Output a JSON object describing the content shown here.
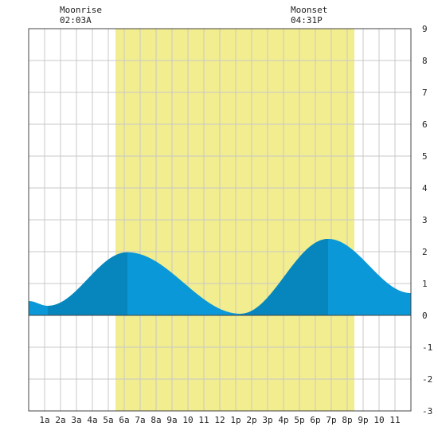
{
  "header": {
    "moonrise_label": "Moonrise",
    "moonrise_time": "02:03A",
    "moonset_label": "Moonset",
    "moonset_time": "04:31P"
  },
  "chart_data": {
    "type": "area",
    "title": "",
    "xlabel": "",
    "ylabel": "",
    "xlim": [
      0,
      24
    ],
    "ylim": [
      -3,
      9
    ],
    "grid": true,
    "x_tick_labels": [
      "1a",
      "2a",
      "3a",
      "4a",
      "5a",
      "6a",
      "7a",
      "8a",
      "9a",
      "10",
      "11",
      "12",
      "1p",
      "2p",
      "3p",
      "4p",
      "5p",
      "6p",
      "7p",
      "8p",
      "9p",
      "10",
      "11"
    ],
    "y_ticks": [
      9,
      8,
      7,
      6,
      5,
      4,
      3,
      2,
      1,
      0,
      -1,
      -2,
      -3
    ],
    "daylight_hours": [
      5.45,
      20.45
    ],
    "moon_up_hours": [
      2.05,
      16.52
    ],
    "tide_extremes": [
      {
        "hour": 0.0,
        "height": 0.45
      },
      {
        "hour": 1.2,
        "height": 0.3
      },
      {
        "hour": 6.2,
        "height": 1.98
      },
      {
        "hour": 13.3,
        "height": 0.05
      },
      {
        "hour": 18.8,
        "height": 2.4
      },
      {
        "hour": 24.0,
        "height": 0.7
      }
    ],
    "colors": {
      "daylight": "#f2ed8e",
      "tide_light": "#0a98d8",
      "tide_dark": "#0686bc",
      "grid": "#c8c8c8",
      "axis": "#444444"
    }
  }
}
